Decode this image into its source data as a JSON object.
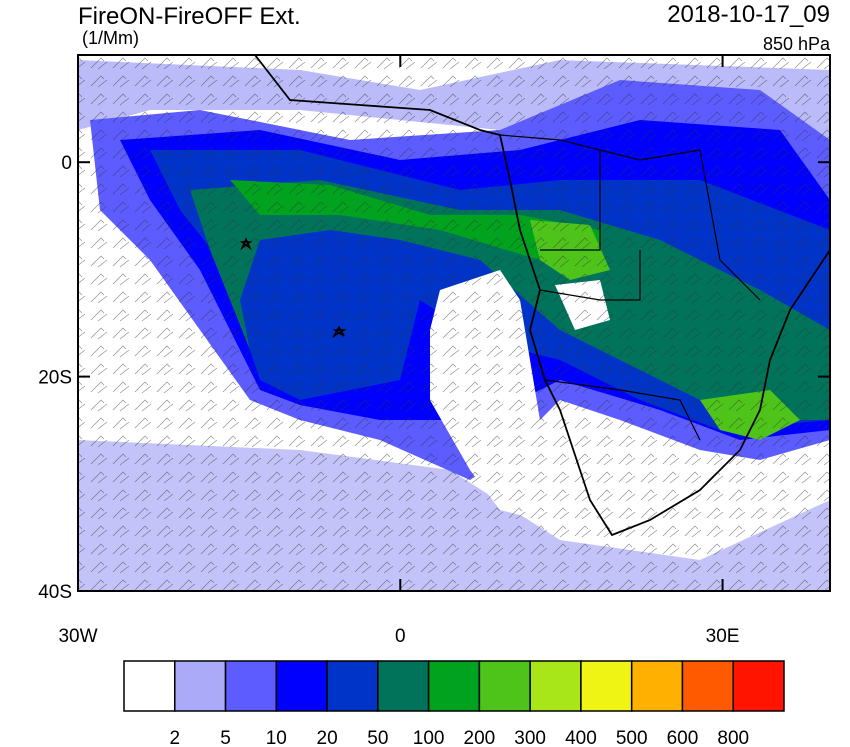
{
  "header": {
    "title": "FireON-FireOFF Ext.",
    "units": "(1/Mm)",
    "time": "2018-10-17_09",
    "level": "850 hPa"
  },
  "map": {
    "lon_range": [
      -30,
      40
    ],
    "lat_range": [
      -40,
      10
    ],
    "lat_ticks": [
      {
        "value": 0,
        "label": "0"
      },
      {
        "value": -20,
        "label": "20S"
      },
      {
        "value": -40,
        "label": "40S"
      }
    ],
    "lon_ticks": [
      {
        "value": -30,
        "label": "30W"
      },
      {
        "value": 0,
        "label": "0"
      },
      {
        "value": 30,
        "label": "30E"
      }
    ]
  },
  "colorbar": {
    "colors": [
      "#ffffff",
      "#aaaaf8",
      "#5c5cff",
      "#0000ff",
      "#0033c8",
      "#00735a",
      "#00a21e",
      "#4ec41a",
      "#a8e61a",
      "#f0f414",
      "#ffb000",
      "#ff5a00",
      "#ff1400"
    ],
    "labels": [
      "2",
      "5",
      "10",
      "20",
      "50",
      "100",
      "200",
      "300",
      "400",
      "500",
      "600",
      "800"
    ]
  }
}
